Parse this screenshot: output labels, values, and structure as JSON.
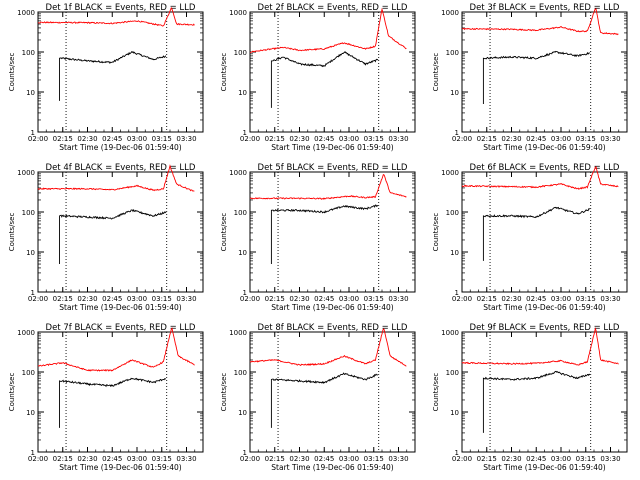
{
  "page": {
    "xlabel": "Start Time (19-Dec-06 01:59:40)",
    "ylabel": "Counts/sec",
    "colors": {
      "events": "#000000",
      "lld": "#ff0000",
      "axes": "#000000"
    }
  },
  "chart_data": [
    {
      "type": "line",
      "title": "Det 1f BLACK = Events, RED = LLD",
      "xlabel": "Start Time (19-Dec-06 01:59:40)",
      "ylabel": "Counts/sec",
      "yscale": "log",
      "ylim": [
        1,
        1000
      ],
      "xlim": [
        "02:00",
        "03:40"
      ],
      "x_ticks": [
        "02:00",
        "02:15",
        "02:30",
        "02:45",
        "03:00",
        "03:15",
        "03:30"
      ],
      "y_ticks": [
        "1",
        "10",
        "100",
        "1000"
      ],
      "markers": [
        "02:17",
        "03:18"
      ],
      "series": [
        {
          "color": "#000000",
          "start": "02:13",
          "start_value": 6,
          "points": [
            [
              "02:14",
              70
            ],
            [
              "02:30",
              60
            ],
            [
              "02:45",
              55
            ],
            [
              "02:57",
              100
            ],
            [
              "03:10",
              65
            ],
            [
              "03:18",
              80
            ]
          ]
        },
        {
          "color": "#ff0000",
          "points": [
            [
              "02:00",
              550
            ],
            [
              "02:30",
              540
            ],
            [
              "02:45",
              520
            ],
            [
              "03:00",
              600
            ],
            [
              "03:10",
              500
            ],
            [
              "03:16",
              450
            ],
            [
              "03:21",
              1300
            ],
            [
              "03:24",
              500
            ],
            [
              "03:35",
              480
            ]
          ]
        }
      ]
    },
    {
      "type": "line",
      "title": "Det 2f BLACK = Events, RED = LLD",
      "xlabel": "Start Time (19-Dec-06 01:59:40)",
      "ylabel": "Counts/sec",
      "yscale": "log",
      "ylim": [
        1,
        1000
      ],
      "xlim": [
        "02:00",
        "03:40"
      ],
      "x_ticks": [
        "02:00",
        "02:15",
        "02:30",
        "02:45",
        "03:00",
        "03:15",
        "03:30"
      ],
      "y_ticks": [
        "1",
        "10",
        "100",
        "1000"
      ],
      "markers": [
        "02:17",
        "03:18"
      ],
      "series": [
        {
          "color": "#000000",
          "start": "02:13",
          "start_value": 4,
          "points": [
            [
              "02:14",
              60
            ],
            [
              "02:20",
              75
            ],
            [
              "02:30",
              50
            ],
            [
              "02:45",
              45
            ],
            [
              "02:57",
              100
            ],
            [
              "03:10",
              50
            ],
            [
              "03:18",
              65
            ]
          ]
        },
        {
          "color": "#ff0000",
          "points": [
            [
              "02:00",
              100
            ],
            [
              "02:20",
              130
            ],
            [
              "02:30",
              110
            ],
            [
              "02:45",
              120
            ],
            [
              "02:57",
              170
            ],
            [
              "03:10",
              120
            ],
            [
              "03:16",
              140
            ],
            [
              "03:20",
              1200
            ],
            [
              "03:24",
              250
            ],
            [
              "03:35",
              120
            ]
          ]
        }
      ]
    },
    {
      "type": "line",
      "title": "Det 3f BLACK = Events, RED = LLD",
      "xlabel": "Start Time (19-Dec-06 01:59:40)",
      "ylabel": "Counts/sec",
      "yscale": "log",
      "ylim": [
        1,
        1000
      ],
      "xlim": [
        "02:00",
        "03:40"
      ],
      "x_ticks": [
        "02:00",
        "02:15",
        "02:30",
        "02:45",
        "03:00",
        "03:15",
        "03:30"
      ],
      "y_ticks": [
        "1",
        "10",
        "100",
        "1000"
      ],
      "markers": [
        "02:17",
        "03:18"
      ],
      "series": [
        {
          "color": "#000000",
          "start": "02:13",
          "start_value": 5,
          "points": [
            [
              "02:14",
              70
            ],
            [
              "02:30",
              75
            ],
            [
              "02:45",
              70
            ],
            [
              "02:57",
              100
            ],
            [
              "03:10",
              80
            ],
            [
              "03:18",
              95
            ]
          ]
        },
        {
          "color": "#ff0000",
          "points": [
            [
              "02:00",
              380
            ],
            [
              "02:30",
              370
            ],
            [
              "02:45",
              350
            ],
            [
              "03:00",
              420
            ],
            [
              "03:10",
              330
            ],
            [
              "03:16",
              330
            ],
            [
              "03:21",
              1300
            ],
            [
              "03:24",
              300
            ],
            [
              "03:35",
              280
            ]
          ]
        }
      ]
    },
    {
      "type": "line",
      "title": "Det 4f BLACK = Events, RED = LLD",
      "xlabel": "Start Time (19-Dec-06 01:59:40)",
      "ylabel": "Counts/sec",
      "yscale": "log",
      "ylim": [
        1,
        1000
      ],
      "xlim": [
        "02:00",
        "03:40"
      ],
      "x_ticks": [
        "02:00",
        "02:15",
        "02:30",
        "02:45",
        "03:00",
        "03:15",
        "03:30"
      ],
      "y_ticks": [
        "1",
        "10",
        "100",
        "1000"
      ],
      "markers": [
        "02:17",
        "03:18"
      ],
      "series": [
        {
          "color": "#000000",
          "start": "02:13",
          "start_value": 5,
          "points": [
            [
              "02:14",
              80
            ],
            [
              "02:30",
              75
            ],
            [
              "02:45",
              70
            ],
            [
              "02:57",
              110
            ],
            [
              "03:10",
              80
            ],
            [
              "03:18",
              100
            ]
          ]
        },
        {
          "color": "#ff0000",
          "points": [
            [
              "02:00",
              380
            ],
            [
              "02:30",
              380
            ],
            [
              "02:45",
              360
            ],
            [
              "03:00",
              450
            ],
            [
              "03:10",
              350
            ],
            [
              "03:16",
              380
            ],
            [
              "03:20",
              1400
            ],
            [
              "03:24",
              500
            ],
            [
              "03:35",
              320
            ]
          ]
        }
      ]
    },
    {
      "type": "line",
      "title": "Det 5f BLACK = Events, RED = LLD",
      "xlabel": "Start Time (19-Dec-06 01:59:40)",
      "ylabel": "Counts/sec",
      "yscale": "log",
      "ylim": [
        1,
        1000
      ],
      "xlim": [
        "02:00",
        "03:40"
      ],
      "x_ticks": [
        "02:00",
        "02:15",
        "02:30",
        "02:45",
        "03:00",
        "03:15",
        "03:30"
      ],
      "y_ticks": [
        "1",
        "10",
        "100",
        "1000"
      ],
      "markers": [
        "02:17",
        "03:18"
      ],
      "series": [
        {
          "color": "#000000",
          "start": "02:13",
          "start_value": 5,
          "points": [
            [
              "02:14",
              110
            ],
            [
              "02:30",
              110
            ],
            [
              "02:45",
              100
            ],
            [
              "02:57",
              140
            ],
            [
              "03:10",
              120
            ],
            [
              "03:18",
              150
            ]
          ]
        },
        {
          "color": "#ff0000",
          "points": [
            [
              "02:00",
              220
            ],
            [
              "02:30",
              220
            ],
            [
              "02:45",
              215
            ],
            [
              "03:00",
              250
            ],
            [
              "03:10",
              230
            ],
            [
              "03:16",
              240
            ],
            [
              "03:21",
              900
            ],
            [
              "03:25",
              300
            ],
            [
              "03:35",
              240
            ]
          ]
        }
      ]
    },
    {
      "type": "line",
      "title": "Det 6f BLACK = Events, RED = LLD",
      "xlabel": "Start Time (19-Dec-06 01:59:40)",
      "ylabel": "Counts/sec",
      "yscale": "log",
      "ylim": [
        1,
        1000
      ],
      "xlim": [
        "02:00",
        "03:40"
      ],
      "x_ticks": [
        "02:00",
        "02:15",
        "02:30",
        "02:45",
        "03:00",
        "03:15",
        "03:30"
      ],
      "y_ticks": [
        "1",
        "10",
        "100",
        "1000"
      ],
      "markers": [
        "02:17",
        "03:18"
      ],
      "series": [
        {
          "color": "#000000",
          "start": "02:13",
          "start_value": 6,
          "points": [
            [
              "02:14",
              80
            ],
            [
              "02:30",
              80
            ],
            [
              "02:45",
              75
            ],
            [
              "02:57",
              130
            ],
            [
              "03:10",
              90
            ],
            [
              "03:18",
              120
            ]
          ]
        },
        {
          "color": "#ff0000",
          "points": [
            [
              "02:00",
              450
            ],
            [
              "02:30",
              430
            ],
            [
              "02:45",
              420
            ],
            [
              "03:00",
              500
            ],
            [
              "03:10",
              380
            ],
            [
              "03:16",
              420
            ],
            [
              "03:21",
              1400
            ],
            [
              "03:24",
              500
            ],
            [
              "03:35",
              430
            ]
          ]
        }
      ]
    },
    {
      "type": "line",
      "title": "Det 7f BLACK = Events, RED = LLD",
      "xlabel": "Start Time (19-Dec-06 01:59:40)",
      "ylabel": "Counts/sec",
      "yscale": "log",
      "ylim": [
        1,
        1000
      ],
      "xlim": [
        "02:00",
        "03:40"
      ],
      "x_ticks": [
        "02:00",
        "02:15",
        "02:30",
        "02:45",
        "03:00",
        "03:15",
        "03:30"
      ],
      "y_ticks": [
        "1",
        "10",
        "100",
        "1000"
      ],
      "markers": [
        "02:17",
        "03:18"
      ],
      "series": [
        {
          "color": "#000000",
          "start": "02:13",
          "start_value": 4,
          "points": [
            [
              "02:14",
              60
            ],
            [
              "02:30",
              50
            ],
            [
              "02:45",
              45
            ],
            [
              "02:57",
              70
            ],
            [
              "03:10",
              55
            ],
            [
              "03:18",
              70
            ]
          ]
        },
        {
          "color": "#ff0000",
          "points": [
            [
              "02:00",
              140
            ],
            [
              "02:15",
              170
            ],
            [
              "02:30",
              110
            ],
            [
              "02:45",
              110
            ],
            [
              "02:57",
              200
            ],
            [
              "03:10",
              130
            ],
            [
              "03:16",
              180
            ],
            [
              "03:21",
              1300
            ],
            [
              "03:25",
              250
            ],
            [
              "03:35",
              150
            ]
          ]
        }
      ]
    },
    {
      "type": "line",
      "title": "Det 8f BLACK = Events, RED = LLD",
      "xlabel": "Start Time (19-Dec-06 01:59:40)",
      "ylabel": "Counts/sec",
      "yscale": "log",
      "ylim": [
        1,
        1000
      ],
      "xlim": [
        "02:00",
        "03:40"
      ],
      "x_ticks": [
        "02:00",
        "02:15",
        "02:30",
        "02:45",
        "03:00",
        "03:15",
        "03:30"
      ],
      "y_ticks": [
        "1",
        "10",
        "100",
        "1000"
      ],
      "markers": [
        "02:17",
        "03:18"
      ],
      "series": [
        {
          "color": "#000000",
          "start": "02:13",
          "start_value": 4,
          "points": [
            [
              "02:14",
              65
            ],
            [
              "02:30",
              60
            ],
            [
              "02:45",
              55
            ],
            [
              "02:57",
              90
            ],
            [
              "03:10",
              65
            ],
            [
              "03:18",
              90
            ]
          ]
        },
        {
          "color": "#ff0000",
          "points": [
            [
              "02:00",
              180
            ],
            [
              "02:15",
              200
            ],
            [
              "02:30",
              150
            ],
            [
              "02:45",
              160
            ],
            [
              "02:57",
              250
            ],
            [
              "03:10",
              160
            ],
            [
              "03:16",
              200
            ],
            [
              "03:21",
              1300
            ],
            [
              "03:25",
              250
            ],
            [
              "03:35",
              140
            ]
          ]
        }
      ]
    },
    {
      "type": "line",
      "title": "Det 9f BLACK = Events, RED = LLD",
      "xlabel": "Start Time (19-Dec-06 01:59:40)",
      "ylabel": "Counts/sec",
      "yscale": "log",
      "ylim": [
        1,
        1000
      ],
      "xlim": [
        "02:00",
        "03:40"
      ],
      "x_ticks": [
        "02:00",
        "02:15",
        "02:30",
        "02:45",
        "03:00",
        "03:15",
        "03:30"
      ],
      "y_ticks": [
        "1",
        "10",
        "100",
        "1000"
      ],
      "markers": [
        "02:17",
        "03:18"
      ],
      "series": [
        {
          "color": "#000000",
          "start": "02:13",
          "start_value": 3,
          "points": [
            [
              "02:14",
              70
            ],
            [
              "02:30",
              65
            ],
            [
              "02:45",
              70
            ],
            [
              "02:57",
              100
            ],
            [
              "03:10",
              70
            ],
            [
              "03:18",
              90
            ]
          ]
        },
        {
          "color": "#ff0000",
          "points": [
            [
              "02:00",
              170
            ],
            [
              "02:30",
              160
            ],
            [
              "02:45",
              165
            ],
            [
              "03:00",
              190
            ],
            [
              "03:10",
              150
            ],
            [
              "03:16",
              180
            ],
            [
              "03:21",
              1300
            ],
            [
              "03:24",
              200
            ],
            [
              "03:35",
              160
            ]
          ]
        }
      ]
    }
  ]
}
